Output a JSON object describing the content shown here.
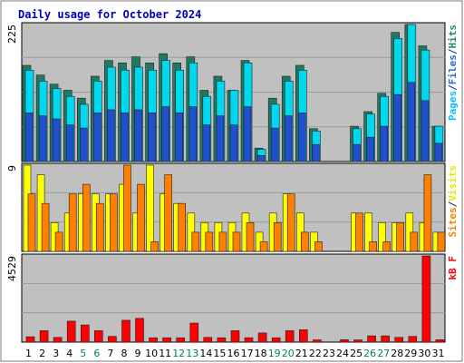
{
  "chart_data": {
    "type": "bar",
    "title": "Daily usage for October 2024",
    "categories": [
      "1",
      "2",
      "3",
      "4",
      "5",
      "6",
      "7",
      "8",
      "9",
      "10",
      "11",
      "12",
      "13",
      "14",
      "15",
      "16",
      "17",
      "18",
      "19",
      "20",
      "21",
      "22",
      "23",
      "24",
      "25",
      "26",
      "27",
      "28",
      "29",
      "30",
      "31"
    ],
    "weekend_days": [
      "5",
      "6",
      "12",
      "13",
      "19",
      "20",
      "26",
      "27"
    ],
    "panels": [
      {
        "id": "hits",
        "ymax_label": "225",
        "ymax": 225,
        "legend": [
          {
            "label": "Pages",
            "color": "#00c0ff"
          },
          {
            "label": "/",
            "color": "#202080"
          },
          {
            "label": "Files",
            "color": "#1e6de0"
          },
          {
            "label": "/",
            "color": "#202080"
          },
          {
            "label": "Hits",
            "color": "#1c8a6b"
          }
        ],
        "series": [
          {
            "name": "Hits",
            "color": "#1e7a60",
            "values": [
              158,
              142,
              127,
              117,
              104,
              140,
              166,
              162,
              172,
              162,
              177,
              162,
              172,
              117,
              140,
              117,
              166,
              22,
              104,
              140,
              158,
              54,
              0,
              0,
              58,
              82,
              112,
              212,
              260,
              190,
              58
            ]
          },
          {
            "name": "Files",
            "color": "#00d8f0",
            "values": [
              150,
              132,
              120,
              107,
              94,
              132,
              155,
              150,
              155,
              150,
              166,
              150,
              162,
              107,
              132,
              117,
              162,
              20,
              94,
              132,
              150,
              50,
              0,
              0,
              54,
              78,
              107,
              202,
              245,
              183,
              58
            ]
          },
          {
            "name": "Pages",
            "color": "#2050d0",
            "values": [
              80,
              75,
              70,
              60,
              55,
              80,
              85,
              80,
              85,
              80,
              90,
              80,
              90,
              60,
              75,
              60,
              90,
              10,
              55,
              75,
              80,
              28,
              0,
              0,
              28,
              40,
              58,
              110,
              130,
              100,
              30
            ]
          }
        ]
      },
      {
        "id": "visits",
        "ymax_label": "9",
        "ymax": 9,
        "legend": [
          {
            "label": "Sites",
            "color": "#ff8000"
          },
          {
            "label": "/",
            "color": "#202080"
          },
          {
            "label": "Visits",
            "color": "#e8e800"
          }
        ],
        "series": [
          {
            "name": "Visits",
            "color": "#ffff00",
            "values": [
              9,
              8,
              3,
              4,
              6,
              6,
              6,
              7,
              4,
              9,
              6,
              5,
              4,
              3,
              3,
              3,
              4,
              2,
              4,
              6,
              4,
              2,
              0,
              0,
              4,
              4,
              3,
              3,
              4,
              3,
              2
            ]
          },
          {
            "name": "Sites",
            "color": "#ff8000",
            "values": [
              6,
              5,
              2,
              6,
              7,
              5,
              6,
              9,
              7,
              1,
              8,
              5,
              2,
              2,
              2,
              2,
              3,
              1,
              3,
              6,
              2,
              1,
              0,
              0,
              4,
              1,
              1,
              3,
              2,
              8,
              2
            ]
          }
        ]
      },
      {
        "id": "kbf",
        "ymax_label": "4529",
        "ymax": 4529,
        "legend": [
          {
            "label": "kB F",
            "color": "#ff0000"
          }
        ],
        "series": [
          {
            "name": "kB F",
            "color": "#ff0000",
            "values": [
              280,
              600,
              250,
              1100,
              900,
              600,
              300,
              1150,
              1250,
              230,
              230,
              230,
              1000,
              250,
              230,
              600,
              230,
              480,
              230,
              600,
              650,
              120,
              0,
              130,
              120,
              330,
              330,
              250,
              300,
              4529,
              130
            ]
          }
        ]
      }
    ]
  }
}
